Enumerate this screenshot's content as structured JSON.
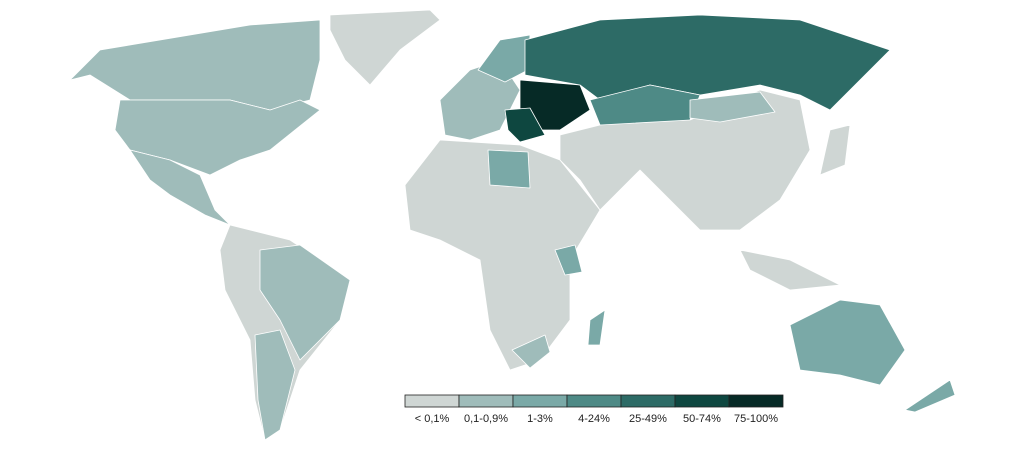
{
  "map": {
    "type": "choropleth",
    "legend": [
      {
        "label": "< 0,1%",
        "color": "#cfd6d4"
      },
      {
        "label": "0,1-0,9%",
        "color": "#9fbcba"
      },
      {
        "label": "1-3%",
        "color": "#7aa9a7"
      },
      {
        "label": "4-24%",
        "color": "#4e8a86"
      },
      {
        "label": "25-49%",
        "color": "#2d6b66"
      },
      {
        "label": "50-74%",
        "color": "#0e4740"
      },
      {
        "label": "75-100%",
        "color": "#062a26"
      }
    ]
  }
}
